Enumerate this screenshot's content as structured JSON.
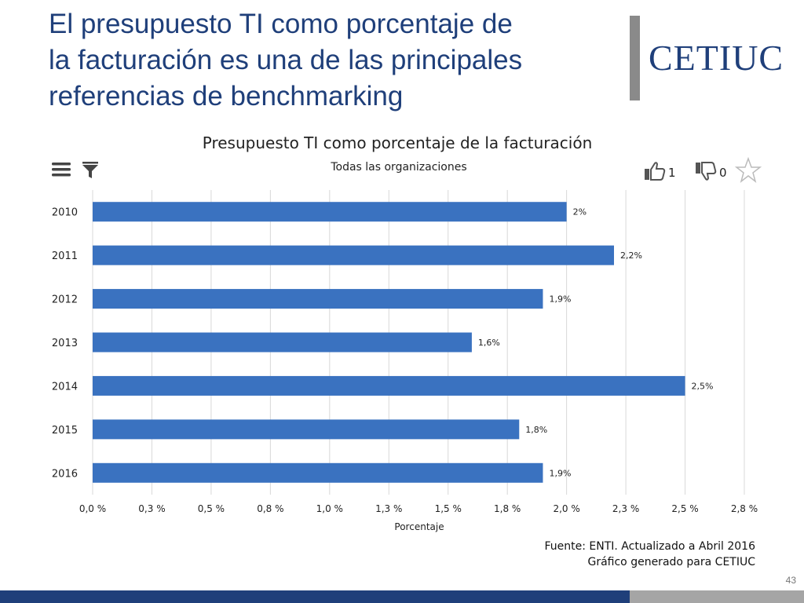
{
  "slide": {
    "title_lines": [
      "El presupuesto TI como porcentaje de",
      "la facturación es una de las principales",
      "referencias de benchmarking"
    ],
    "logo": "CETIUC",
    "page_number": "43"
  },
  "toolbar": {
    "like_count": "1",
    "dislike_count": "0"
  },
  "source": {
    "line1": "Fuente: ENTI. Actualizado a Abril 2016",
    "line2": "Gráfico generado para CETIUC"
  },
  "colors": {
    "bar": "#3a72c0",
    "title": "#1f3f7a",
    "grid": "#d8d8d8"
  },
  "chart_data": {
    "type": "bar",
    "orientation": "horizontal",
    "title": "Presupuesto TI como porcentaje de la facturación",
    "subtitle": "Todas las organizaciones",
    "xlabel": "Porcentaje",
    "ylabel": "",
    "categories": [
      "2010",
      "2011",
      "2012",
      "2013",
      "2014",
      "2015",
      "2016"
    ],
    "values": [
      2.0,
      2.2,
      1.9,
      1.6,
      2.5,
      1.8,
      1.9
    ],
    "data_labels": [
      "2%",
      "2,2%",
      "1,9%",
      "1,6%",
      "2,5%",
      "1,8%",
      "1,9%"
    ],
    "x_ticks": [
      0,
      0.25,
      0.5,
      0.75,
      1.0,
      1.25,
      1.5,
      1.75,
      2.0,
      2.25,
      2.5,
      2.75
    ],
    "x_tick_labels": [
      "0,0 %",
      "0,3 %",
      "0,5 %",
      "0,8 %",
      "1,0 %",
      "1,3 %",
      "1,5 %",
      "1,8 %",
      "2,0 %",
      "2,3 %",
      "2,5 %",
      "2,8 %"
    ],
    "xlim": [
      0,
      2.75
    ],
    "grid": true
  }
}
